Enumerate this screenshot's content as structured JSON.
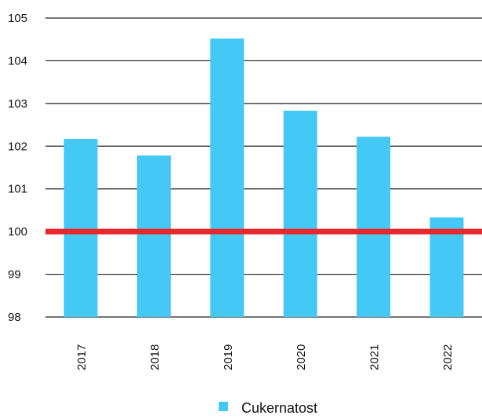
{
  "chart_data": {
    "type": "bar",
    "categories": [
      "2017",
      "2018",
      "2019",
      "2020",
      "2021",
      "2022"
    ],
    "series": [
      {
        "name": "Cukernatost",
        "values": [
          102.17,
          101.78,
          104.52,
          102.83,
          102.22,
          100.33
        ],
        "color": "#44c8f5"
      }
    ],
    "reference_line": {
      "value": 100,
      "color": "#e8262b"
    },
    "ylim": [
      98,
      105
    ],
    "yticks": [
      "98",
      "99",
      "100",
      "101",
      "102",
      "103",
      "104",
      "105"
    ],
    "grid": true,
    "legend_position": "bottom-center",
    "x_tick_rotation": "vertical"
  }
}
